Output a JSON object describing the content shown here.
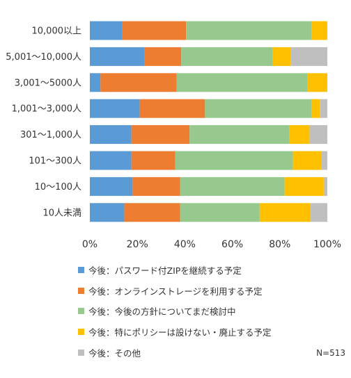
{
  "chart_data": {
    "type": "bar",
    "orientation": "horizontal",
    "stacked": true,
    "percent": true,
    "categories": [
      "10,000以上",
      "5,001～10,000人",
      "3,001～5000人",
      "1,001～3,000人",
      "301～1,000人",
      "101～300人",
      "10～100人",
      "10人未満"
    ],
    "series": [
      {
        "name": "今後：パスワード付ZIPを継続する予定",
        "color": "#5b9bd5",
        "values": [
          13.5,
          23.0,
          4.5,
          21.0,
          17.5,
          17.5,
          18.0,
          14.5
        ]
      },
      {
        "name": "今後：オンラインストレージを利用する予定",
        "color": "#ed7d31",
        "values": [
          27.0,
          15.5,
          32.0,
          27.5,
          24.5,
          18.5,
          20.0,
          23.5
        ]
      },
      {
        "name": "今後：今後の方針についてまだ検討中",
        "color": "#97c98f",
        "values": [
          53.0,
          38.5,
          55.0,
          45.0,
          42.0,
          49.5,
          44.0,
          33.5
        ]
      },
      {
        "name": "今後：特にポリシーは設けない・廃止する予定",
        "color": "#ffc000",
        "values": [
          6.5,
          7.5,
          8.5,
          3.5,
          8.5,
          12.0,
          16.5,
          21.5
        ]
      },
      {
        "name": "今後：その他",
        "color": "#bfbfbf",
        "values": [
          0.0,
          15.5,
          0.0,
          3.0,
          7.5,
          2.5,
          1.5,
          7.0
        ]
      }
    ],
    "xlim": [
      0,
      100
    ],
    "xticks": [
      "0%",
      "20%",
      "40%",
      "60%",
      "80%",
      "100%"
    ],
    "grid": false,
    "legend_placement": "bottom",
    "note": "N=513"
  }
}
